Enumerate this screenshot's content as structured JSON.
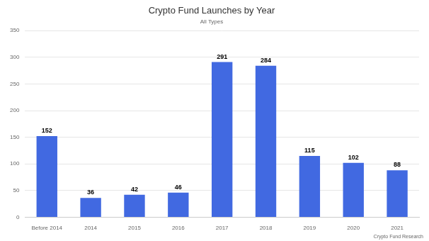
{
  "chart_data": {
    "type": "bar",
    "title": "Crypto Fund Launches by Year",
    "subtitle": "All Types",
    "annotations": [
      "Crypto Fund Research"
    ],
    "categories": [
      "Before 2014",
      "2014",
      "2015",
      "2016",
      "2017",
      "2018",
      "2019",
      "2020",
      "2021"
    ],
    "values": [
      152,
      36,
      42,
      46,
      291,
      284,
      115,
      102,
      88
    ],
    "color": "#4169e1",
    "ylim": [
      0,
      350
    ],
    "yticks": [
      0,
      50,
      100,
      150,
      200,
      250,
      300,
      350
    ],
    "grid": true,
    "data_labels": true
  }
}
